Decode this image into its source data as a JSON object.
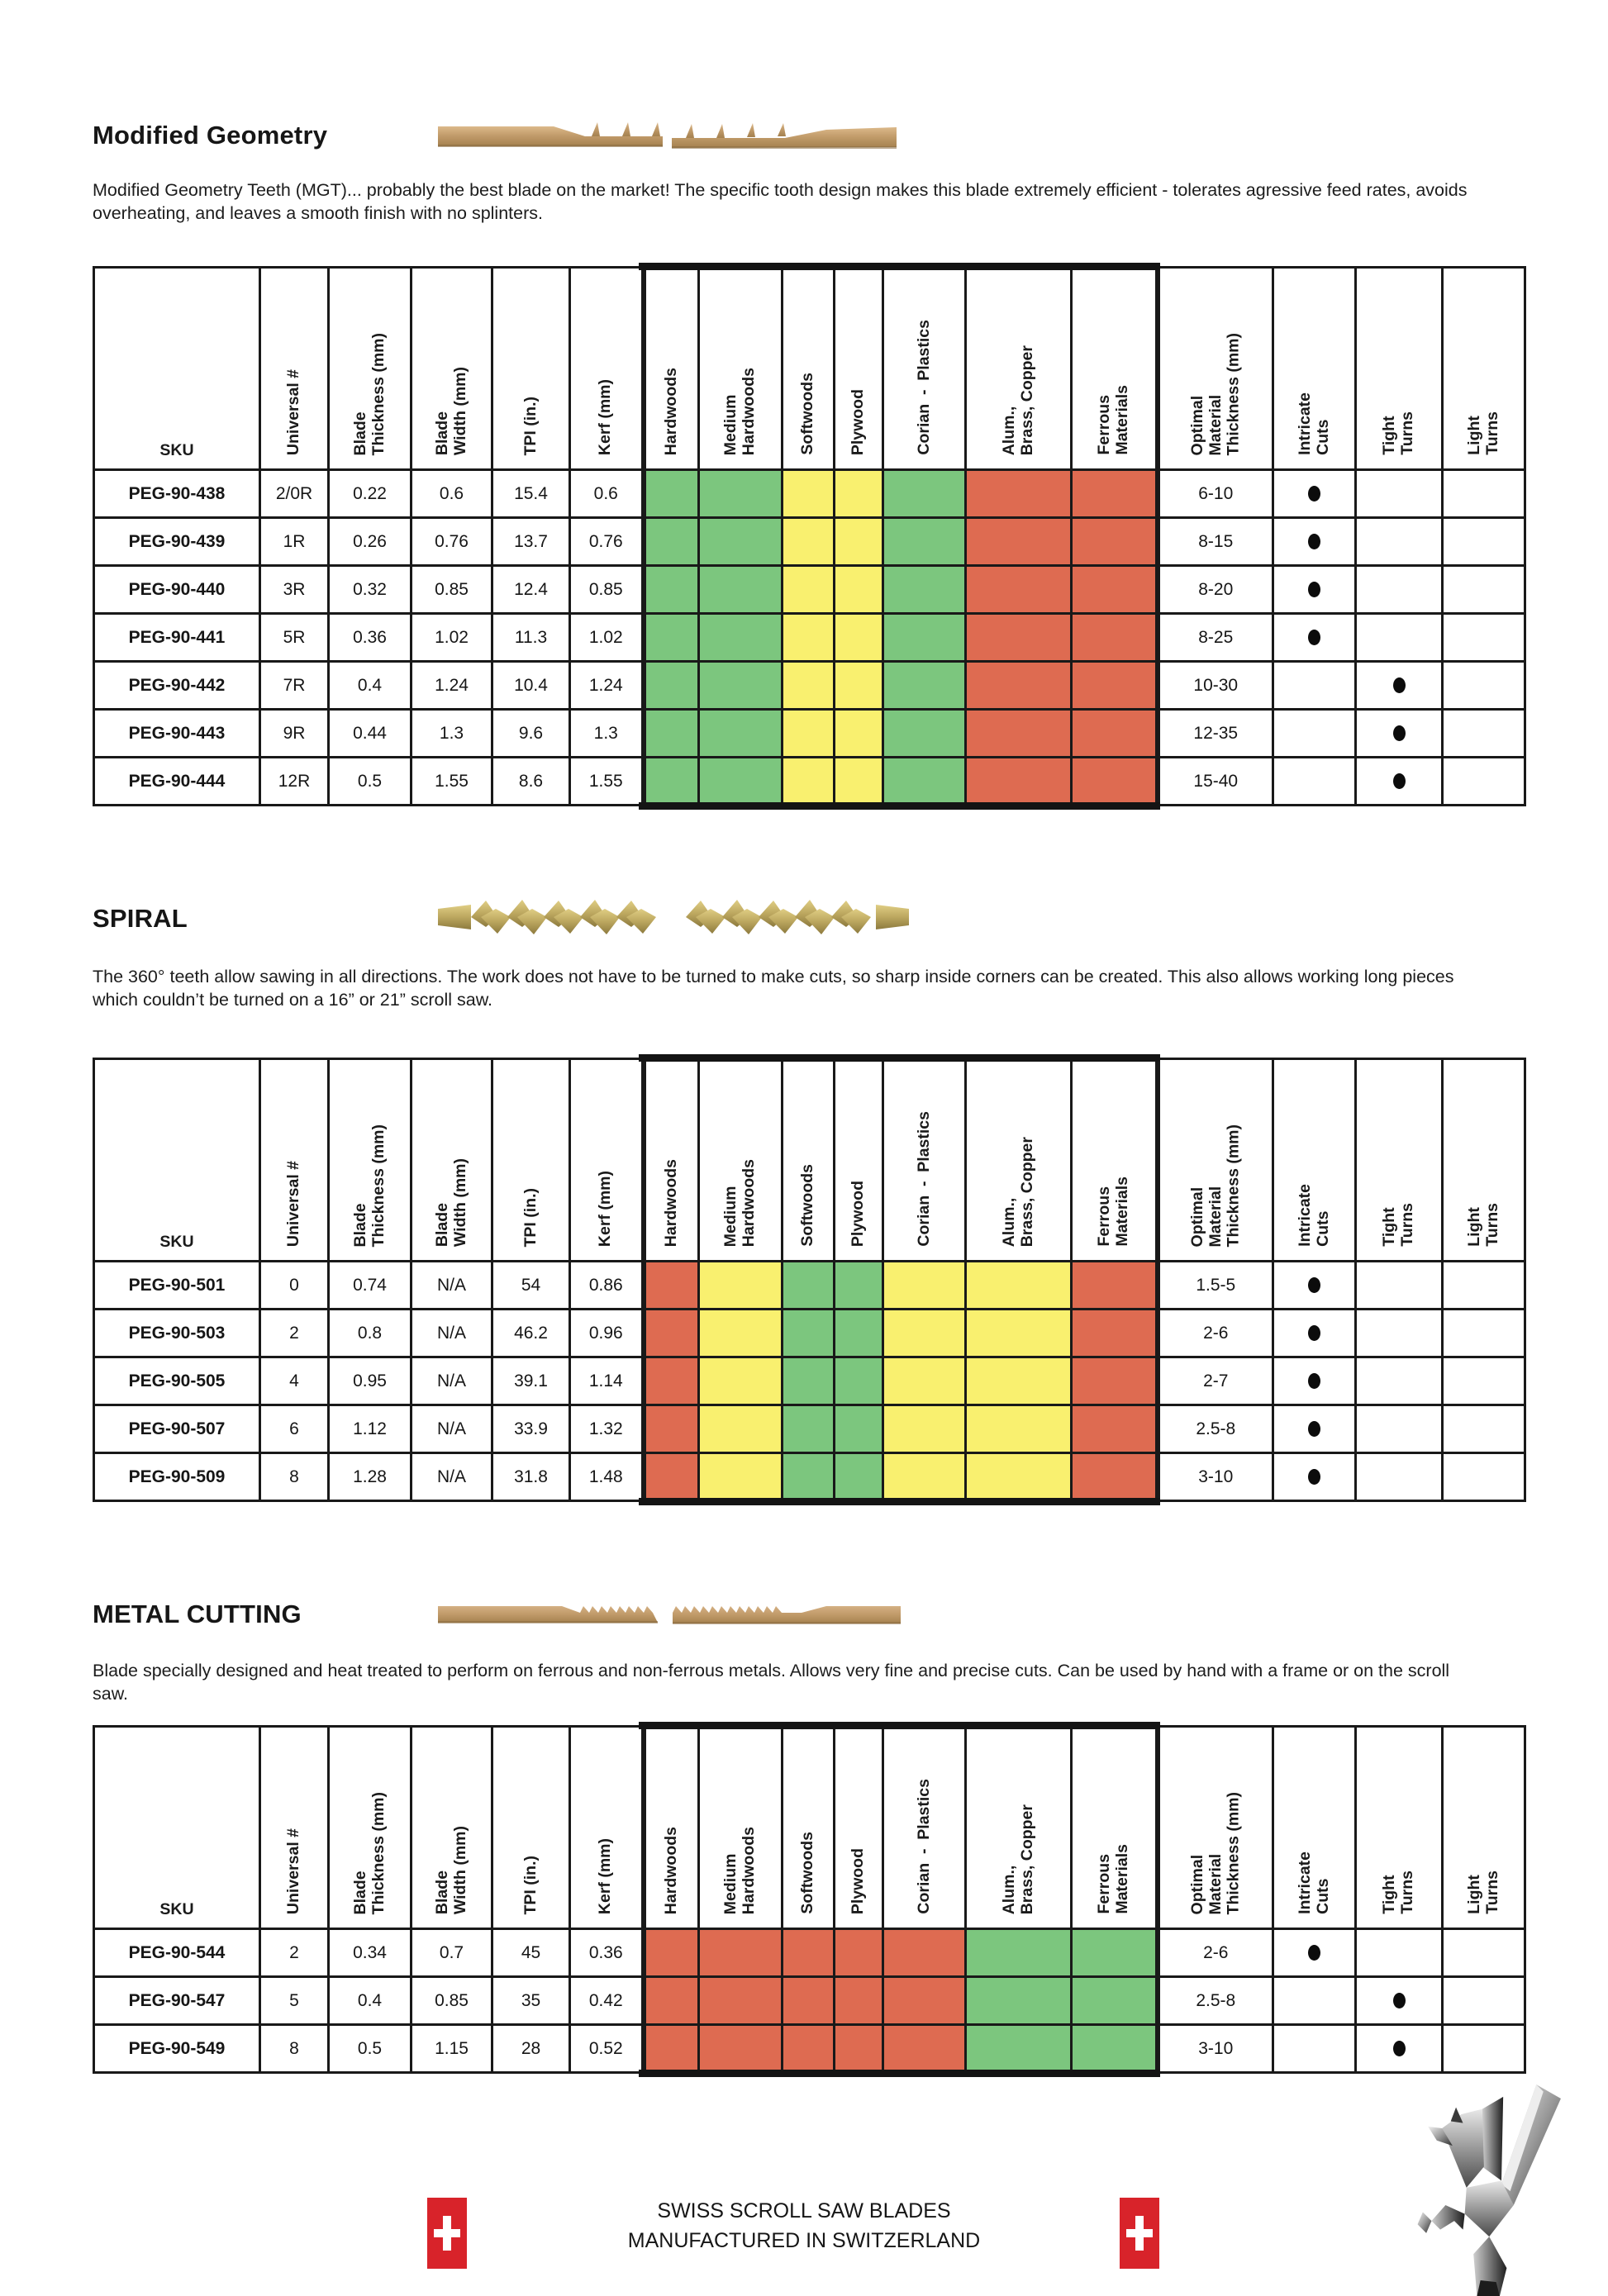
{
  "palette": {
    "green": "#7CC67E",
    "yellow": "#F9F06F",
    "red": "#DE6B51",
    "flag_red": "#D8232A"
  },
  "columns": [
    "SKU",
    "Universal #",
    "Blade\nThickness (mm)",
    "Blade\nWidth (mm)",
    "TPI (in.)",
    "Kerf (mm)",
    "Hardwoods",
    "Medium\nHardwoods",
    "Softwoods",
    "Plywood",
    "Corian  -  Plastics",
    "Alum.,\nBrass, Copper",
    "Ferrous\nMaterials",
    "Optimal\nMaterial\nThickness (mm)",
    "Intricate\nCuts",
    "Tight\nTurns",
    "Light\nTurns"
  ],
  "sections": [
    {
      "title": "Modified Geometry",
      "description": "Modified Geometry Teeth (MGT)... probably the best blade on the market! The specific tooth design makes this blade extremely efficient - tolerates agressive feed rates, avoids overheating, and leaves a smooth finish with no splinters.",
      "materials": [
        "green",
        "green",
        "yellow",
        "yellow",
        "green",
        "red",
        "red"
      ],
      "rows": [
        {
          "sku": "PEG-90-438",
          "universal": "2/0R",
          "thickness": "0.22",
          "width": "0.6",
          "tpi": "15.4",
          "kerf": "0.6",
          "optimal": "6-10",
          "dot": "intricate"
        },
        {
          "sku": "PEG-90-439",
          "universal": "1R",
          "thickness": "0.26",
          "width": "0.76",
          "tpi": "13.7",
          "kerf": "0.76",
          "optimal": "8-15",
          "dot": "intricate"
        },
        {
          "sku": "PEG-90-440",
          "universal": "3R",
          "thickness": "0.32",
          "width": "0.85",
          "tpi": "12.4",
          "kerf": "0.85",
          "optimal": "8-20",
          "dot": "intricate"
        },
        {
          "sku": "PEG-90-441",
          "universal": "5R",
          "thickness": "0.36",
          "width": "1.02",
          "tpi": "11.3",
          "kerf": "1.02",
          "optimal": "8-25",
          "dot": "intricate"
        },
        {
          "sku": "PEG-90-442",
          "universal": "7R",
          "thickness": "0.4",
          "width": "1.24",
          "tpi": "10.4",
          "kerf": "1.24",
          "optimal": "10-30",
          "dot": "tight"
        },
        {
          "sku": "PEG-90-443",
          "universal": "9R",
          "thickness": "0.44",
          "width": "1.3",
          "tpi": "9.6",
          "kerf": "1.3",
          "optimal": "12-35",
          "dot": "tight"
        },
        {
          "sku": "PEG-90-444",
          "universal": "12R",
          "thickness": "0.5",
          "width": "1.55",
          "tpi": "8.6",
          "kerf": "1.55",
          "optimal": "15-40",
          "dot": "tight"
        }
      ]
    },
    {
      "title": "SPIRAL",
      "description": "The 360° teeth allow sawing in all directions. The work does not have to be turned to make cuts, so sharp inside corners can be created. This also allows working long pieces which couldn’t be turned on a 16” or 21” scroll saw.",
      "materials": [
        "red",
        "yellow",
        "green",
        "green",
        "yellow",
        "yellow",
        "red"
      ],
      "rows": [
        {
          "sku": "PEG-90-501",
          "universal": "0",
          "thickness": "0.74",
          "width": "N/A",
          "tpi": "54",
          "kerf": "0.86",
          "optimal": "1.5-5",
          "dot": "intricate"
        },
        {
          "sku": "PEG-90-503",
          "universal": "2",
          "thickness": "0.8",
          "width": "N/A",
          "tpi": "46.2",
          "kerf": "0.96",
          "optimal": "2-6",
          "dot": "intricate"
        },
        {
          "sku": "PEG-90-505",
          "universal": "4",
          "thickness": "0.95",
          "width": "N/A",
          "tpi": "39.1",
          "kerf": "1.14",
          "optimal": "2-7",
          "dot": "intricate"
        },
        {
          "sku": "PEG-90-507",
          "universal": "6",
          "thickness": "1.12",
          "width": "N/A",
          "tpi": "33.9",
          "kerf": "1.32",
          "optimal": "2.5-8",
          "dot": "intricate"
        },
        {
          "sku": "PEG-90-509",
          "universal": "8",
          "thickness": "1.28",
          "width": "N/A",
          "tpi": "31.8",
          "kerf": "1.48",
          "optimal": "3-10",
          "dot": "intricate"
        }
      ]
    },
    {
      "title": "METAL CUTTING",
      "description": "Blade specially designed and heat treated to perform on ferrous and non-ferrous metals. Allows very fine and precise cuts. Can be used by hand with a frame or on the scroll saw.",
      "materials": [
        "red",
        "red",
        "red",
        "red",
        "red",
        "green",
        "green"
      ],
      "rows": [
        {
          "sku": "PEG-90-544",
          "universal": "2",
          "thickness": "0.34",
          "width": "0.7",
          "tpi": "45",
          "kerf": "0.36",
          "optimal": "2-6",
          "dot": "intricate"
        },
        {
          "sku": "PEG-90-547",
          "universal": "5",
          "thickness": "0.4",
          "width": "0.85",
          "tpi": "35",
          "kerf": "0.42",
          "optimal": "2.5-8",
          "dot": "tight"
        },
        {
          "sku": "PEG-90-549",
          "universal": "8",
          "thickness": "0.5",
          "width": "1.15",
          "tpi": "28",
          "kerf": "0.52",
          "optimal": "3-10",
          "dot": "tight"
        }
      ]
    }
  ],
  "footer": {
    "line1": "SWISS SCROLL SAW BLADES",
    "line2": "MANUFACTURED IN SWITZERLAND"
  }
}
